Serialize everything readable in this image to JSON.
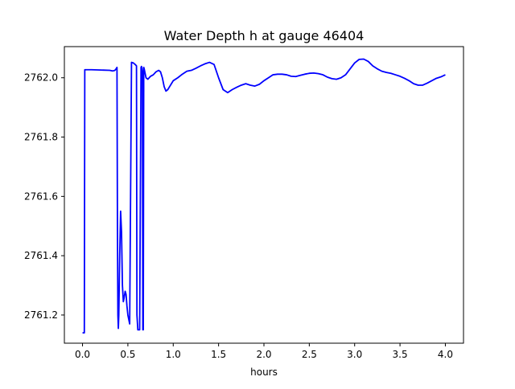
{
  "chart_data": {
    "type": "line",
    "title": "Water Depth h at gauge 46404",
    "xlabel": "hours",
    "ylabel": "",
    "xlim": [
      -0.2,
      4.2
    ],
    "ylim": [
      2761.105,
      2762.105
    ],
    "xticks": [
      0.0,
      0.5,
      1.0,
      1.5,
      2.0,
      2.5,
      3.0,
      3.5,
      4.0
    ],
    "xtick_labels": [
      "0.0",
      "0.5",
      "1.0",
      "1.5",
      "2.0",
      "2.5",
      "3.0",
      "3.5",
      "4.0"
    ],
    "yticks": [
      2761.2,
      2761.4,
      2761.6,
      2761.8,
      2762.0
    ],
    "ytick_labels": [
      "2761.2",
      "2761.4",
      "2761.6",
      "2761.8",
      "2762.0"
    ],
    "grid": false,
    "colors": {
      "line": "#0000ff",
      "axes": "#000000",
      "background": "#ffffff"
    },
    "series": [
      {
        "x": [
          0.0,
          0.02,
          0.025,
          0.03,
          0.1,
          0.2,
          0.3,
          0.33,
          0.35,
          0.36,
          0.37,
          0.38,
          0.385,
          0.39,
          0.395,
          0.4,
          0.41,
          0.42,
          0.43,
          0.44,
          0.45,
          0.46,
          0.47,
          0.48,
          0.49,
          0.5,
          0.52,
          0.54,
          0.56,
          0.58,
          0.595,
          0.6,
          0.61,
          0.63,
          0.645,
          0.65,
          0.655,
          0.66,
          0.665,
          0.67,
          0.675,
          0.68,
          0.69,
          0.7,
          0.72,
          0.75,
          0.78,
          0.81,
          0.84,
          0.86,
          0.88,
          0.9,
          0.92,
          0.94,
          0.96,
          0.98,
          1.0,
          1.05,
          1.1,
          1.15,
          1.2,
          1.25,
          1.3,
          1.35,
          1.4,
          1.45,
          1.5,
          1.55,
          1.6,
          1.65,
          1.7,
          1.75,
          1.8,
          1.85,
          1.9,
          1.95,
          2.0,
          2.05,
          2.1,
          2.15,
          2.2,
          2.25,
          2.3,
          2.35,
          2.4,
          2.45,
          2.5,
          2.55,
          2.6,
          2.65,
          2.7,
          2.75,
          2.8,
          2.85,
          2.9,
          2.95,
          3.0,
          3.05,
          3.1,
          3.15,
          3.2,
          3.25,
          3.3,
          3.35,
          3.4,
          3.45,
          3.5,
          3.55,
          3.6,
          3.65,
          3.7,
          3.75,
          3.8,
          3.85,
          3.9,
          3.95,
          4.0
        ],
        "y": [
          2761.14,
          2761.14,
          2762.027,
          2762.027,
          2762.027,
          2762.026,
          2762.025,
          2762.023,
          2762.024,
          2762.026,
          2762.03,
          2762.035,
          2761.5,
          2761.2,
          2761.155,
          2761.2,
          2761.4,
          2761.55,
          2761.48,
          2761.3,
          2761.245,
          2761.26,
          2761.28,
          2761.27,
          2761.23,
          2761.2,
          2761.17,
          2762.052,
          2762.05,
          2762.045,
          2762.04,
          2761.2,
          2761.15,
          2761.15,
          2762.035,
          2762.038,
          2762.033,
          2762.02,
          2761.15,
          2761.15,
          2762.035,
          2762.03,
          2762.015,
          2762.0,
          2761.995,
          2762.005,
          2762.01,
          2762.02,
          2762.025,
          2762.02,
          2762.0,
          2761.97,
          2761.955,
          2761.96,
          2761.97,
          2761.98,
          2761.99,
          2762.0,
          2762.012,
          2762.022,
          2762.025,
          2762.032,
          2762.04,
          2762.047,
          2762.052,
          2762.045,
          2762.0,
          2761.96,
          2761.95,
          2761.96,
          2761.968,
          2761.975,
          2761.98,
          2761.975,
          2761.972,
          2761.978,
          2761.99,
          2762.0,
          2762.01,
          2762.012,
          2762.012,
          2762.01,
          2762.005,
          2762.004,
          2762.008,
          2762.012,
          2762.015,
          2762.016,
          2762.014,
          2762.01,
          2762.002,
          2761.997,
          2761.995,
          2762.0,
          2762.01,
          2762.03,
          2762.05,
          2762.062,
          2762.063,
          2762.055,
          2762.04,
          2762.03,
          2762.022,
          2762.018,
          2762.015,
          2762.01,
          2762.005,
          2761.998,
          2761.99,
          2761.98,
          2761.975,
          2761.975,
          2761.982,
          2761.99,
          2761.998,
          2762.003,
          2762.01
        ]
      }
    ]
  }
}
